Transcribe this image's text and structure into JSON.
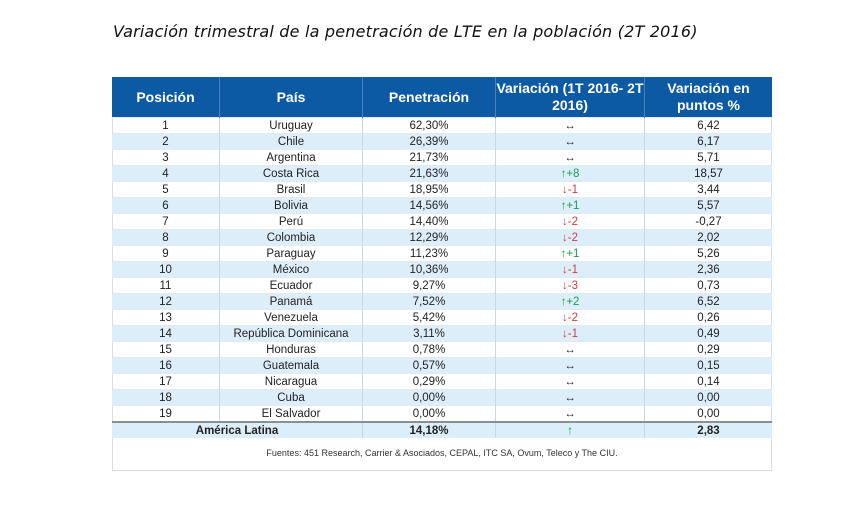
{
  "title": "Variación trimestral de la penetración de LTE en la población (2T 2016)",
  "headers": [
    "Posición",
    "País",
    "Penetración",
    "Variación (1T 2016- 2T 2016)",
    "Variación en puntos %"
  ],
  "rows": [
    {
      "pos": "1",
      "pais": "Uruguay",
      "pen": "62,30%",
      "var": "↔",
      "dir": "same",
      "pts": "6,42"
    },
    {
      "pos": "2",
      "pais": "Chile",
      "pen": "26,39%",
      "var": "↔",
      "dir": "same",
      "pts": "6,17"
    },
    {
      "pos": "3",
      "pais": "Argentina",
      "pen": "21,73%",
      "var": "↔",
      "dir": "same",
      "pts": "5,71"
    },
    {
      "pos": "4",
      "pais": "Costa Rica",
      "pen": "21,63%",
      "var": "↑+8",
      "dir": "up",
      "pts": "18,57"
    },
    {
      "pos": "5",
      "pais": "Brasil",
      "pen": "18,95%",
      "var": "↓-1",
      "dir": "down",
      "pts": "3,44"
    },
    {
      "pos": "6",
      "pais": "Bolivia",
      "pen": "14,56%",
      "var": "↑+1",
      "dir": "up",
      "pts": "5,57"
    },
    {
      "pos": "7",
      "pais": "Perú",
      "pen": "14,40%",
      "var": "↓-2",
      "dir": "down",
      "pts": "-0,27"
    },
    {
      "pos": "8",
      "pais": "Colombia",
      "pen": "12,29%",
      "var": "↓-2",
      "dir": "down",
      "pts": "2,02"
    },
    {
      "pos": "9",
      "pais": "Paraguay",
      "pen": "11,23%",
      "var": "↑+1",
      "dir": "up",
      "pts": "5,26"
    },
    {
      "pos": "10",
      "pais": "México",
      "pen": "10,36%",
      "var": "↓-1",
      "dir": "down",
      "pts": "2,36"
    },
    {
      "pos": "11",
      "pais": "Ecuador",
      "pen": "9,27%",
      "var": "↓-3",
      "dir": "down",
      "pts": "0,73"
    },
    {
      "pos": "12",
      "pais": "Panamá",
      "pen": "7,52%",
      "var": "↑+2",
      "dir": "up",
      "pts": "6,52"
    },
    {
      "pos": "13",
      "pais": "Venezuela",
      "pen": "5,42%",
      "var": "↓-2",
      "dir": "down",
      "pts": "0,26"
    },
    {
      "pos": "14",
      "pais": "República Dominicana",
      "pen": "3,11%",
      "var": "↓-1",
      "dir": "down",
      "pts": "0,49"
    },
    {
      "pos": "15",
      "pais": "Honduras",
      "pen": "0,78%",
      "var": "↔",
      "dir": "same",
      "pts": "0,29"
    },
    {
      "pos": "16",
      "pais": "Guatemala",
      "pen": "0,57%",
      "var": "↔",
      "dir": "same",
      "pts": "0,15"
    },
    {
      "pos": "17",
      "pais": "Nicaragua",
      "pen": "0,29%",
      "var": "↔",
      "dir": "same",
      "pts": "0,14"
    },
    {
      "pos": "18",
      "pais": "Cuba",
      "pen": "0,00%",
      "var": "↔",
      "dir": "same",
      "pts": "0,00"
    },
    {
      "pos": "19",
      "pais": "El Salvador",
      "pen": "0,00%",
      "var": "↔",
      "dir": "same",
      "pts": "0,00"
    }
  ],
  "total": {
    "label": "América Latina",
    "pen": "14,18%",
    "var": "↑",
    "dir": "up",
    "pts": "2,83"
  },
  "source": "Fuentes: 451 Research,  Carrier & Asociados, CEPAL, ITC SA, Ovum, Teleco y The CIU.",
  "colors": {
    "header": "#0d5aa4",
    "alt_row": "#ddeefb",
    "up": "#1aa04a",
    "down": "#d93a3a"
  }
}
